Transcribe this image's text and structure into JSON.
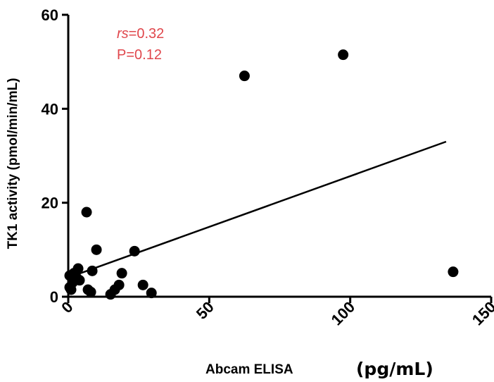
{
  "chart_data": {
    "type": "scatter",
    "xlabel": "Abcam ELISA",
    "xlabel_unit": "(pg/mL)",
    "ylabel": "TK1 activity (pmol/min/mL)",
    "xlim": [
      0,
      150
    ],
    "ylim": [
      0,
      60
    ],
    "x_ticks": [
      "0",
      "50",
      "100",
      "150"
    ],
    "y_ticks": [
      "0",
      "20",
      "40",
      "60"
    ],
    "annotation": {
      "rs_label": "rs",
      "rs_value": "=0.32",
      "p_text": "P=0.12",
      "color": "#e0474c"
    },
    "points": [
      {
        "x": 0.5,
        "y": 4.5
      },
      {
        "x": 0.5,
        "y": 2
      },
      {
        "x": 1,
        "y": 1.5
      },
      {
        "x": 1.5,
        "y": 3
      },
      {
        "x": 2,
        "y": 5
      },
      {
        "x": 3,
        "y": 4
      },
      {
        "x": 3.5,
        "y": 6
      },
      {
        "x": 4,
        "y": 3.5
      },
      {
        "x": 6.5,
        "y": 18
      },
      {
        "x": 7,
        "y": 1.5
      },
      {
        "x": 8,
        "y": 1
      },
      {
        "x": 8.5,
        "y": 5.5
      },
      {
        "x": 10,
        "y": 10
      },
      {
        "x": 15,
        "y": 0.5
      },
      {
        "x": 16.5,
        "y": 1.5
      },
      {
        "x": 18,
        "y": 2.5
      },
      {
        "x": 19,
        "y": 5
      },
      {
        "x": 23.5,
        "y": 9.7
      },
      {
        "x": 26.5,
        "y": 2.5
      },
      {
        "x": 29.5,
        "y": 0.8
      },
      {
        "x": 62.5,
        "y": 47
      },
      {
        "x": 97.5,
        "y": 51.5
      },
      {
        "x": 136.5,
        "y": 5.3
      }
    ],
    "fit_line": {
      "x": [
        2,
        134
      ],
      "y": [
        4.5,
        33
      ]
    },
    "colors": {
      "points": "#000000",
      "line": "#000000",
      "axes": "#000000"
    }
  }
}
